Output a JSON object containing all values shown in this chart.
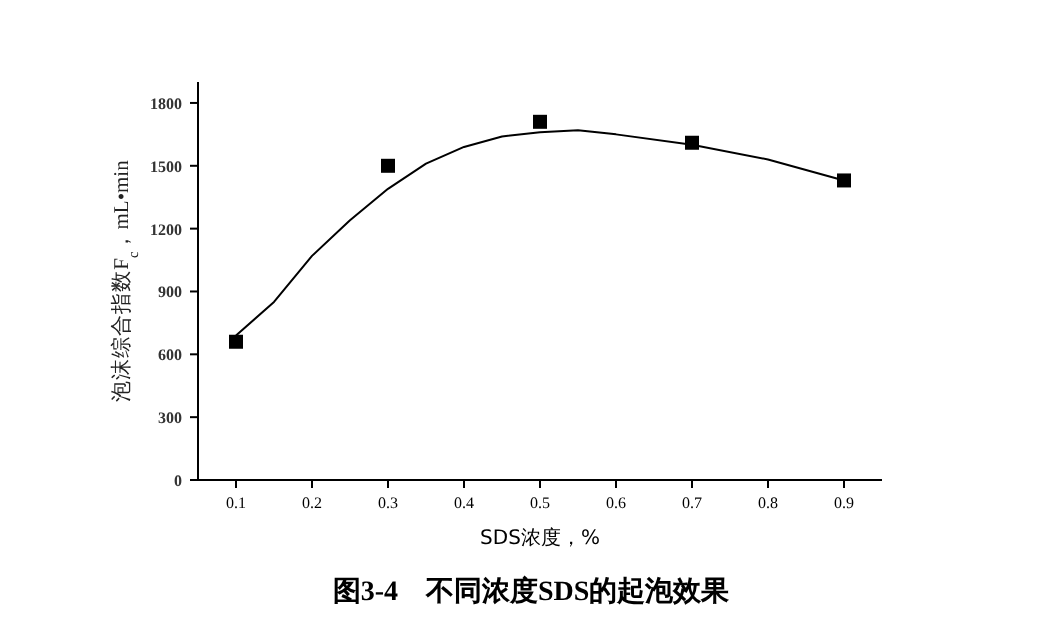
{
  "chart_data": {
    "type": "scatter",
    "title": "图3-4　不同浓度SDS的起泡效果",
    "xlabel": "SDS浓度，%",
    "ylabel": "泡沫综合指数F$_{c}$，mL•min",
    "xlim": [
      0.05,
      0.95
    ],
    "xticks": [
      0.1,
      0.2,
      0.3,
      0.4,
      0.5,
      0.6,
      0.7,
      0.8,
      0.9
    ],
    "ylim": [
      0,
      1900
    ],
    "yticks": [
      0,
      300,
      600,
      900,
      1200,
      1500,
      1800
    ],
    "grid": false,
    "series": [
      {
        "marker": "square",
        "color": "#000000",
        "x": [
          0.1,
          0.3,
          0.5,
          0.7,
          0.9
        ],
        "values": [
          660,
          1500,
          1710,
          1610,
          1430
        ]
      },
      {
        "type": "line",
        "marker": "none",
        "line_style": "solid",
        "color": "#000000",
        "x": [
          0.1,
          0.15,
          0.2,
          0.25,
          0.3,
          0.35,
          0.4,
          0.45,
          0.5,
          0.55,
          0.6,
          0.7,
          0.8,
          0.9
        ],
        "values": [
          690,
          850,
          1070,
          1240,
          1390,
          1510,
          1590,
          1640,
          1660,
          1670,
          1650,
          1600,
          1530,
          1430
        ]
      }
    ]
  }
}
